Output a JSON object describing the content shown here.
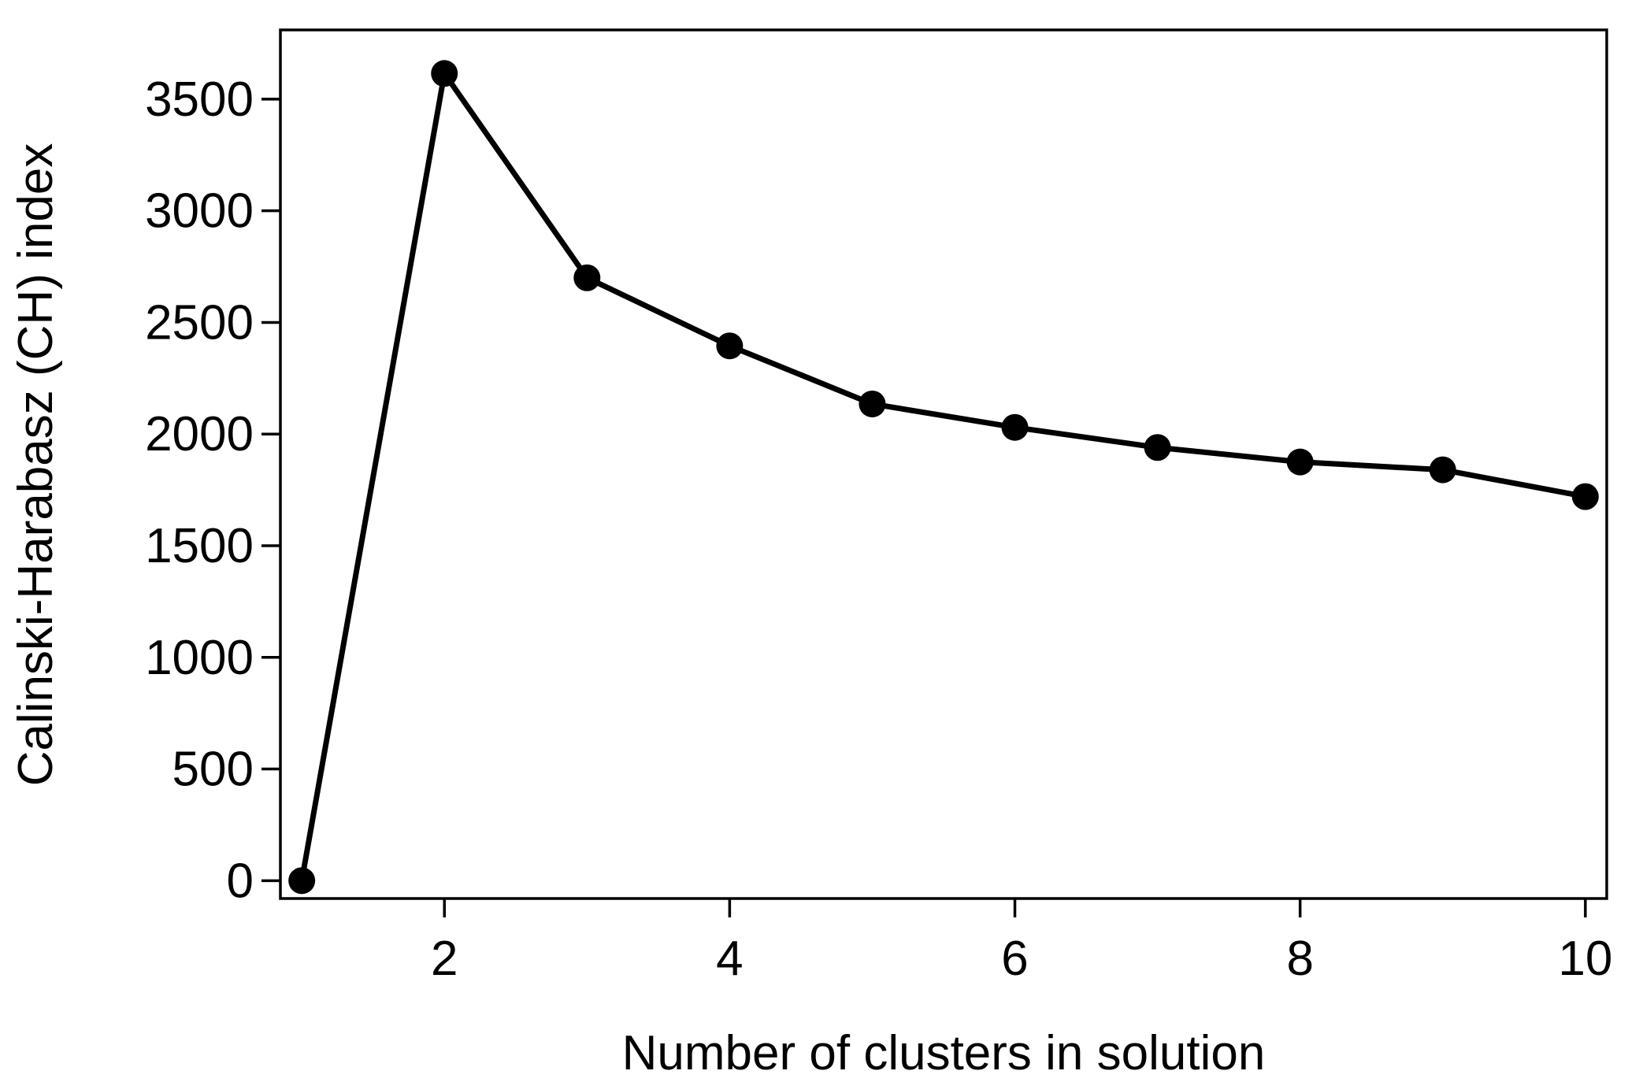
{
  "chart_data": {
    "type": "line",
    "title": "",
    "xlabel": "Number of clusters in solution",
    "ylabel": "Calinski-Harabasz (CH) index",
    "x": [
      1,
      2,
      3,
      4,
      5,
      6,
      7,
      8,
      9,
      10
    ],
    "series": [
      {
        "values": [
          0,
          3615,
          2700,
          2395,
          2135,
          2030,
          1940,
          1875,
          1840,
          1720
        ]
      }
    ],
    "xlim": [
      0.85,
      10.15
    ],
    "ylim": [
      -80,
      3810
    ],
    "x_ticks": [
      2,
      4,
      6,
      8,
      10
    ],
    "x_tick_labels": [
      "2",
      "4",
      "6",
      "8",
      "10"
    ],
    "y_ticks": [
      0,
      500,
      1000,
      1500,
      2000,
      2500,
      3000,
      3500
    ],
    "y_tick_labels": [
      "0",
      "500",
      "1000",
      "1500",
      "2000",
      "2500",
      "3000",
      "3500"
    ],
    "grid": false,
    "legend": "none",
    "colors": {
      "line": "#000000",
      "marker": "#000000",
      "axes": "#000000",
      "background": "#ffffff"
    }
  }
}
